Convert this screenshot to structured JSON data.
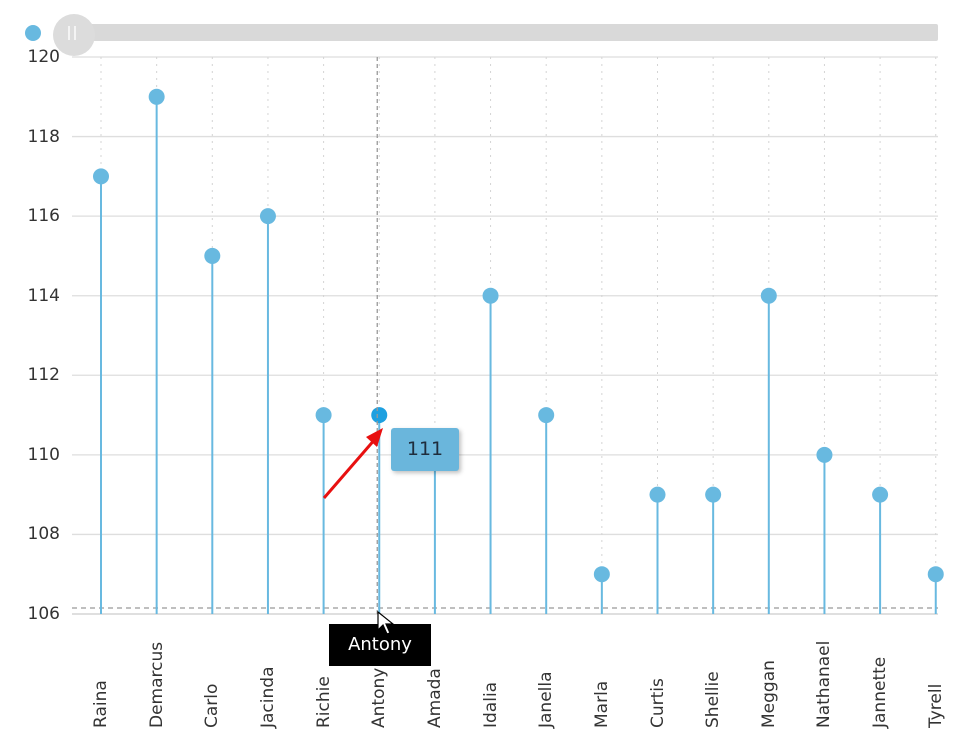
{
  "chart_data": {
    "type": "lollipop",
    "title": "",
    "xlabel": "",
    "ylabel": "",
    "ylim": [
      106,
      120
    ],
    "yticks": [
      106,
      108,
      110,
      112,
      114,
      116,
      118,
      120
    ],
    "grid": {
      "y": true,
      "x": "dotted"
    },
    "categories": [
      "Raina",
      "Demarcus",
      "Carlo",
      "Jacinda",
      "Richie",
      "Antony",
      "Amada",
      "Idalia",
      "Janella",
      "Marla",
      "Curtis",
      "Shellie",
      "Meggan",
      "Nathanael",
      "Jannette",
      "Tyrell"
    ],
    "values": [
      117,
      119,
      115,
      116,
      111,
      111,
      110,
      114,
      111,
      107,
      109,
      109,
      114,
      110,
      109,
      107
    ],
    "series_color": "#68b9e0",
    "hovered": {
      "category": "Antony",
      "value": 111
    }
  },
  "tooltip": {
    "value_label": "111",
    "category_label": "Antony"
  },
  "scrollbar": {
    "visible": true
  },
  "colors": {
    "accent": "#68b9e0",
    "grid": "#dddddd",
    "arrow": "#e81010"
  }
}
